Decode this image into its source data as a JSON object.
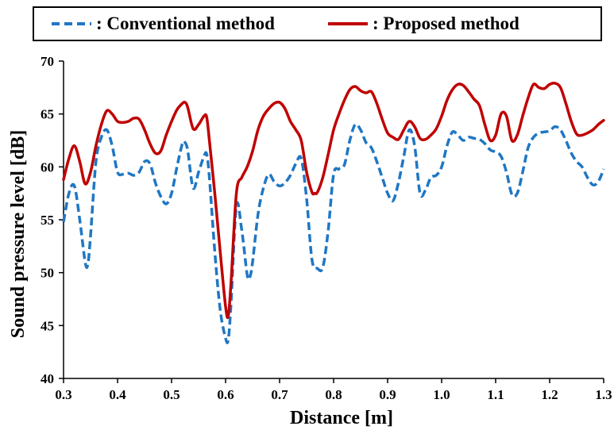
{
  "chart_data": {
    "type": "line",
    "title": "",
    "xlabel": "Distance [m]",
    "ylabel": "Sound pressure level [dB]",
    "xlim": [
      0.3,
      1.3
    ],
    "ylim": [
      40,
      70
    ],
    "xticks": [
      "0.3",
      "0.4",
      "0.5",
      "0.6",
      "0.7",
      "0.8",
      "0.9",
      "1.0",
      "1.1",
      "1.2",
      "1.3"
    ],
    "yticks": [
      "40",
      "45",
      "50",
      "55",
      "60",
      "65",
      "70"
    ],
    "grid": false,
    "legend_position": "top",
    "series": [
      {
        "name": ": Conventional method",
        "style": "dashed",
        "color": "#1f77c4",
        "x": [
          0.3,
          0.31,
          0.32,
          0.33,
          0.34,
          0.345,
          0.35,
          0.36,
          0.37,
          0.38,
          0.39,
          0.4,
          0.41,
          0.42,
          0.43,
          0.44,
          0.45,
          0.46,
          0.47,
          0.48,
          0.49,
          0.5,
          0.51,
          0.52,
          0.525,
          0.53,
          0.54,
          0.55,
          0.56,
          0.565,
          0.57,
          0.58,
          0.59,
          0.6,
          0.605,
          0.61,
          0.62,
          0.63,
          0.64,
          0.645,
          0.65,
          0.66,
          0.67,
          0.68,
          0.69,
          0.7,
          0.71,
          0.72,
          0.73,
          0.74,
          0.75,
          0.76,
          0.77,
          0.78,
          0.79,
          0.8,
          0.81,
          0.82,
          0.83,
          0.84,
          0.85,
          0.86,
          0.87,
          0.88,
          0.89,
          0.9,
          0.91,
          0.92,
          0.93,
          0.94,
          0.95,
          0.96,
          0.97,
          0.98,
          0.99,
          1.0,
          1.01,
          1.02,
          1.03,
          1.04,
          1.05,
          1.06,
          1.07,
          1.08,
          1.09,
          1.1,
          1.11,
          1.12,
          1.13,
          1.14,
          1.15,
          1.16,
          1.17,
          1.18,
          1.19,
          1.2,
          1.21,
          1.22,
          1.23,
          1.24,
          1.25,
          1.26,
          1.27,
          1.28,
          1.29,
          1.3
        ],
        "y": [
          54.8,
          57.5,
          58.2,
          55.0,
          51.0,
          50.8,
          53.5,
          60.5,
          62.8,
          63.5,
          62.0,
          59.5,
          59.3,
          59.4,
          59.2,
          59.5,
          60.5,
          60.3,
          58.5,
          57.2,
          56.5,
          57.5,
          60.0,
          62.2,
          62.3,
          61.5,
          58.0,
          59.5,
          61.0,
          61.2,
          59.0,
          52.0,
          46.5,
          43.8,
          43.7,
          47.0,
          56.3,
          54.0,
          49.8,
          49.6,
          51.0,
          55.5,
          58.0,
          59.3,
          58.6,
          58.2,
          58.5,
          59.2,
          60.3,
          60.8,
          57.0,
          51.2,
          50.4,
          50.5,
          54.0,
          59.3,
          59.8,
          60.2,
          62.5,
          64.0,
          63.5,
          62.3,
          61.8,
          60.5,
          59.0,
          57.5,
          56.8,
          58.5,
          61.0,
          63.5,
          62.0,
          57.5,
          57.8,
          59.0,
          59.2,
          60.0,
          62.0,
          63.3,
          63.0,
          62.5,
          62.8,
          62.7,
          62.6,
          62.2,
          61.6,
          61.4,
          61.0,
          59.5,
          57.4,
          57.5,
          59.5,
          61.8,
          62.8,
          63.2,
          63.3,
          63.4,
          63.8,
          63.5,
          62.5,
          61.3,
          60.5,
          60.0,
          59.0,
          58.3,
          58.6,
          59.8
        ]
      },
      {
        "name": ": Proposed method",
        "style": "solid",
        "color": "#c00000",
        "x": [
          0.3,
          0.31,
          0.32,
          0.33,
          0.34,
          0.35,
          0.36,
          0.37,
          0.38,
          0.39,
          0.4,
          0.41,
          0.42,
          0.43,
          0.44,
          0.45,
          0.46,
          0.47,
          0.48,
          0.49,
          0.5,
          0.51,
          0.52,
          0.525,
          0.53,
          0.54,
          0.55,
          0.56,
          0.565,
          0.57,
          0.58,
          0.59,
          0.6,
          0.605,
          0.61,
          0.62,
          0.63,
          0.64,
          0.65,
          0.66,
          0.67,
          0.68,
          0.69,
          0.7,
          0.71,
          0.72,
          0.73,
          0.74,
          0.75,
          0.76,
          0.765,
          0.77,
          0.78,
          0.79,
          0.8,
          0.81,
          0.82,
          0.83,
          0.84,
          0.85,
          0.86,
          0.87,
          0.88,
          0.89,
          0.9,
          0.91,
          0.92,
          0.93,
          0.94,
          0.95,
          0.96,
          0.97,
          0.98,
          0.99,
          1.0,
          1.01,
          1.02,
          1.03,
          1.04,
          1.05,
          1.06,
          1.07,
          1.08,
          1.09,
          1.1,
          1.11,
          1.12,
          1.13,
          1.14,
          1.15,
          1.16,
          1.17,
          1.18,
          1.19,
          1.2,
          1.21,
          1.22,
          1.23,
          1.24,
          1.25,
          1.26,
          1.27,
          1.28,
          1.29,
          1.3
        ],
        "y": [
          58.8,
          60.8,
          62.0,
          60.5,
          58.4,
          59.5,
          62.0,
          64.0,
          65.3,
          65.0,
          64.3,
          64.2,
          64.3,
          64.6,
          64.5,
          63.5,
          62.2,
          61.3,
          61.5,
          63.0,
          64.3,
          65.4,
          66.0,
          66.1,
          65.6,
          63.6,
          64.0,
          64.8,
          64.7,
          62.5,
          57.5,
          52.0,
          46.8,
          45.9,
          49.0,
          57.5,
          59.0,
          60.0,
          61.5,
          63.5,
          64.8,
          65.5,
          66.0,
          66.1,
          65.5,
          64.3,
          63.5,
          62.5,
          59.5,
          57.6,
          57.5,
          57.6,
          59.0,
          61.2,
          63.5,
          65.0,
          66.3,
          67.3,
          67.6,
          67.2,
          67.0,
          67.1,
          66.0,
          64.5,
          63.2,
          62.8,
          62.6,
          63.5,
          64.3,
          63.8,
          62.7,
          62.6,
          63.0,
          63.6,
          64.8,
          66.3,
          67.3,
          67.8,
          67.7,
          67.1,
          66.4,
          65.8,
          64.0,
          62.5,
          63.0,
          65.0,
          64.8,
          62.5,
          63.0,
          64.8,
          66.5,
          67.8,
          67.5,
          67.4,
          67.8,
          67.9,
          67.5,
          66.0,
          64.3,
          63.1,
          63.0,
          63.2,
          63.5,
          64.0,
          64.4
        ]
      }
    ]
  }
}
